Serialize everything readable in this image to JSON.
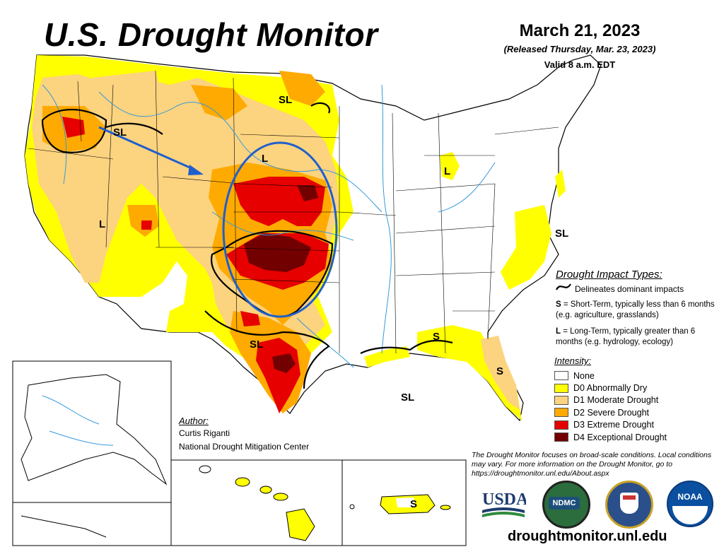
{
  "header": {
    "title": "U.S. Drought Monitor",
    "date": "March 21, 2023",
    "released": "(Released Thursday, Mar. 23, 2023)",
    "valid": "Valid 8 a.m. EDT"
  },
  "impact_types": {
    "title": "Drought Impact Types:",
    "delineates": "Delineates dominant impacts",
    "short_term_key": "S",
    "short_term_text": "= Short-Term, typically less than 6 months (e.g. agriculture, grasslands)",
    "long_term_key": "L",
    "long_term_text": "= Long-Term, typically greater than 6 months (e.g. hydrology, ecology)"
  },
  "intensity": {
    "title": "Intensity:",
    "items": [
      {
        "label": "None",
        "color": "#ffffff"
      },
      {
        "label": "D0 Abnormally Dry",
        "color": "#ffff00"
      },
      {
        "label": "D1 Moderate Drought",
        "color": "#fcd37f"
      },
      {
        "label": "D2 Severe Drought",
        "color": "#ffaa00"
      },
      {
        "label": "D3 Extreme Drought",
        "color": "#e60000"
      },
      {
        "label": "D4 Exceptional Drought",
        "color": "#730000"
      }
    ]
  },
  "author": {
    "label": "Author:",
    "name": "Curtis Riganti",
    "org": "National Drought Mitigation Center"
  },
  "note": "The Drought Monitor focuses on broad-scale conditions. Local conditions may vary. For more information on the Drought Monitor, go to https://droughtmonitor.unl.edu/About.aspx",
  "website": "droughtmonitor.unl.edu",
  "logos": {
    "usda": "USDA",
    "ndmc": "NDMC",
    "noaa": "NOAA"
  },
  "map_labels": {
    "sl_northern_plains": "SL",
    "sl_idaho": "SL",
    "l_nebraska": "L",
    "l_nevada": "L",
    "l_michigan": "L",
    "sl_virginia": "SL",
    "s_southeast": "S",
    "s_florida": "S",
    "sl_texas": "SL",
    "sl_louisiana": "SL",
    "s_puerto_rico": "S"
  },
  "colors": {
    "water": "#3399dd",
    "annotation": "#1f5fcc",
    "boundary": "#000000"
  }
}
